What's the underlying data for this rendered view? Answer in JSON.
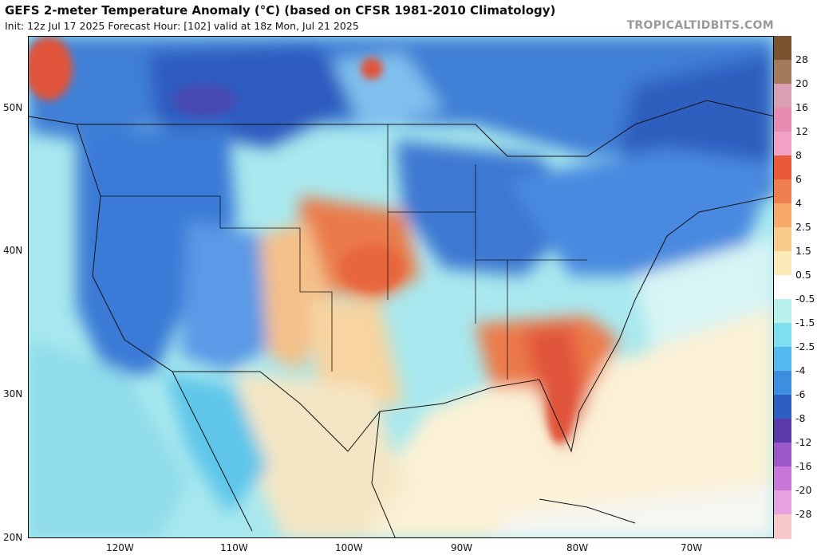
{
  "header": {
    "title": "GEFS 2-meter Temperature Anomaly (°C) (based on CFSR 1981-2010 Climatology)",
    "subtitle": "Init: 12z Jul 17 2025   Forecast Hour: [102]   valid at 18z Mon, Jul 21 2025",
    "watermark": "TROPICALTIDBITS.COM"
  },
  "axes": {
    "lat_labels": [
      "50N",
      "40N",
      "30N",
      "20N"
    ],
    "lon_labels": [
      "120W",
      "110W",
      "100W",
      "90W",
      "80W",
      "70W"
    ]
  },
  "colorbar": {
    "labels": [
      "28",
      "20",
      "16",
      "12",
      "8",
      "6",
      "4",
      "2.5",
      "1.5",
      "0.5",
      "-0.5",
      "-1.5",
      "-2.5",
      "-4",
      "-6",
      "-8",
      "-12",
      "-16",
      "-20",
      "-28"
    ],
    "colors": [
      "#7a5230",
      "#a37a5a",
      "#d9a0b4",
      "#e88bb0",
      "#f2a0c6",
      "#e85a3a",
      "#ef7e4e",
      "#f5a868",
      "#f8cb8c",
      "#fbe9b8",
      "#ffffff",
      "#b8f0ec",
      "#7ddff0",
      "#55b8ee",
      "#3e8ee0",
      "#2c5fc0",
      "#5a3aa8",
      "#9a58c8",
      "#c878d8",
      "#e8a0e0",
      "#f6c8c8"
    ]
  },
  "map": {
    "description_colors": {
      "ocean": "#b4ecec",
      "cold": "#3e7ed8",
      "cool": "#6aa8ea",
      "warm": "#f3c58a",
      "hot": "#e8663c",
      "neutral": "#fbf3d8"
    }
  }
}
